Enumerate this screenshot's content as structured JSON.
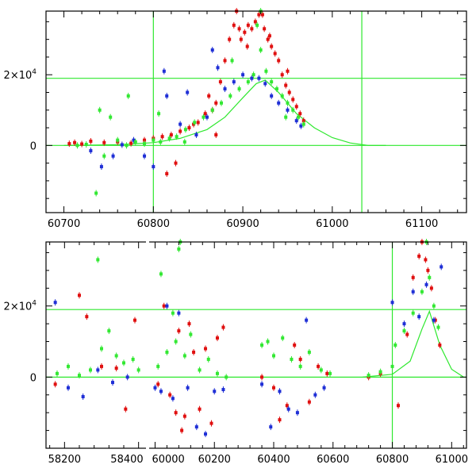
{
  "colors": {
    "red": "#e01010",
    "blue": "#1f2fd6",
    "green": "#33e833",
    "guide": "#2ee82e",
    "axis": "#000000"
  },
  "chart_data": [
    {
      "type": "scatter",
      "title": "",
      "xlabel": "",
      "ylabel": "",
      "xlim": [
        60680,
        61150
      ],
      "ylim": [
        -19000,
        38000
      ],
      "x_ticks": [
        60700,
        60800,
        60900,
        61000,
        61100
      ],
      "x_tick_labels": [
        "60700",
        "60800",
        "60900",
        "61000",
        "61100"
      ],
      "y_ticks": [
        0,
        20000
      ],
      "y_tick_labels": [
        {
          "base": "0",
          "exp": ""
        },
        {
          "base": "2×10",
          "exp": "4"
        }
      ],
      "vlines": [
        60800,
        61033
      ],
      "hlines": [
        0,
        19000
      ],
      "model_curve": {
        "x": [
          60700,
          60760,
          60800,
          60830,
          60860,
          60880,
          60900,
          60915,
          60925,
          60940,
          60960,
          60980,
          61000,
          61020,
          61040,
          61060
        ],
        "y": [
          0,
          200,
          800,
          2000,
          4500,
          8000,
          13500,
          17500,
          18500,
          15000,
          9000,
          5000,
          2200,
          700,
          0,
          0
        ]
      },
      "series": [
        {
          "color": "red",
          "x": [
            60706,
            60712,
            60720,
            60730,
            60745,
            60760,
            60775,
            60790,
            60800,
            60810,
            60820,
            60830,
            60840,
            60850,
            60858,
            60862,
            60866,
            60870,
            60875,
            60880,
            60885,
            60890,
            60893,
            60896,
            60898,
            60902,
            60906,
            60910,
            60914,
            60918,
            60920,
            60922,
            60924,
            60928,
            60932,
            60936,
            60940,
            60944,
            60948,
            60952,
            60956,
            60960,
            60964,
            60968,
            60815,
            60825,
            60845,
            60870,
            60905,
            60930,
            60950
          ],
          "y": [
            500,
            800,
            400,
            1200,
            800,
            1000,
            600,
            1500,
            2000,
            2500,
            3000,
            4000,
            5000,
            6500,
            9000,
            14000,
            10000,
            12000,
            18000,
            24000,
            30000,
            34000,
            38000,
            33000,
            30000,
            32000,
            34000,
            33000,
            35000,
            37000,
            39000,
            37000,
            33000,
            30000,
            28000,
            26000,
            24000,
            20000,
            17000,
            15000,
            13000,
            11000,
            9000,
            7000,
            -8000,
            -5000,
            6000,
            3000,
            28000,
            31000,
            21000
          ]
        },
        {
          "color": "blue",
          "x": [
            60730,
            60742,
            60755,
            60765,
            60778,
            60790,
            60800,
            60812,
            60815,
            60830,
            60838,
            60848,
            60860,
            60866,
            60872,
            60880,
            60890,
            60900,
            60910,
            60918,
            60925,
            60932,
            60940,
            60950,
            60960,
            60965
          ],
          "y": [
            -1500,
            -6000,
            -3000,
            200,
            1500,
            -3000,
            -6000,
            21000,
            14000,
            6000,
            15000,
            3000,
            8000,
            27000,
            22000,
            16000,
            18000,
            20000,
            19000,
            19000,
            17500,
            14000,
            12000,
            10000,
            7000,
            5500
          ]
        },
        {
          "color": "green",
          "x": [
            60715,
            60725,
            60736,
            60745,
            60752,
            60760,
            60770,
            60780,
            60790,
            60800,
            60808,
            60818,
            60826,
            60836,
            60846,
            60856,
            60866,
            60876,
            60886,
            60896,
            60906,
            60912,
            60916,
            60920,
            60926,
            60932,
            60938,
            60944,
            60950,
            60956,
            60962,
            60968,
            60740,
            60772,
            60806,
            60835,
            60888,
            60920,
            60948
          ],
          "y": [
            0,
            300,
            -13500,
            -3000,
            8000,
            1500,
            0,
            1000,
            500,
            1500,
            1000,
            2000,
            2500,
            4500,
            6500,
            8000,
            10000,
            12000,
            14000,
            16000,
            18000,
            20000,
            34000,
            38000,
            21000,
            18000,
            16000,
            14000,
            12000,
            10000,
            8000,
            6000,
            10000,
            14000,
            9000,
            1000,
            24000,
            27000,
            8000
          ]
        }
      ]
    },
    {
      "type": "scatter",
      "title": "",
      "xlabel": "",
      "ylabel": "",
      "axis_break": {
        "segments": [
          {
            "xlim": [
              58150,
              58420
            ]
          },
          {
            "xlim": [
              59980,
              61050
            ]
          }
        ]
      },
      "ylim": [
        -20000,
        38000
      ],
      "x_ticks": [
        58200,
        58400,
        60000,
        60200,
        60400,
        60600,
        60800,
        61000
      ],
      "x_tick_labels": [
        "58200",
        "58400",
        "60000",
        "60200",
        "60400",
        "60600",
        "60800",
        "61000"
      ],
      "y_ticks": [
        0,
        20000
      ],
      "y_tick_labels": [
        {
          "base": "0",
          "exp": ""
        },
        {
          "base": "2×10",
          "exp": "4"
        }
      ],
      "vlines": [
        60800
      ],
      "hlines": [
        0,
        19000
      ],
      "model_curve": {
        "x": [
          60700,
          60800,
          60860,
          60900,
          60925,
          60960,
          61000,
          61040
        ],
        "y": [
          0,
          800,
          4500,
          13500,
          18500,
          9000,
          2200,
          0
        ]
      },
      "series": [
        {
          "color": "red",
          "x": [
            58175,
            58240,
            58260,
            58300,
            58340,
            58365,
            58390,
            60010,
            60030,
            60050,
            60070,
            60080,
            60090,
            60100,
            60115,
            60130,
            60150,
            60170,
            60190,
            60210,
            60230,
            60360,
            60400,
            60420,
            60445,
            60470,
            60490,
            60520,
            60550,
            60580,
            60720,
            60760,
            60820,
            60850,
            60870,
            60890,
            60900,
            60912,
            60920,
            60932,
            60945,
            60960
          ],
          "y": [
            -2000,
            23000,
            17000,
            3000,
            2500,
            -9000,
            16000,
            -2000,
            20000,
            -5000,
            -10000,
            13000,
            -15000,
            -11000,
            15000,
            7000,
            -9000,
            8000,
            -13000,
            11000,
            14000,
            0,
            -3000,
            -12000,
            -8000,
            9000,
            5000,
            -7000,
            3000,
            1000,
            0,
            1000,
            -8000,
            12000,
            28000,
            34000,
            38000,
            33000,
            30000,
            25000,
            16000,
            9000
          ]
        },
        {
          "color": "blue",
          "x": [
            58175,
            58210,
            58250,
            58290,
            58330,
            58370,
            60000,
            60020,
            60040,
            60060,
            60080,
            60110,
            60140,
            60170,
            60200,
            60230,
            60360,
            60390,
            60420,
            60450,
            60480,
            60510,
            60540,
            60570,
            60800,
            60840,
            60870,
            60890,
            60915,
            60940,
            60965
          ],
          "y": [
            21000,
            -3000,
            -5500,
            2000,
            -1500,
            0,
            -3000,
            -4000,
            20000,
            -6000,
            18000,
            -3000,
            -14000,
            -16000,
            -4000,
            -3500,
            -2000,
            -14000,
            -4000,
            -9000,
            -10000,
            16000,
            -5000,
            -3000,
            21000,
            15000,
            24000,
            17000,
            26000,
            16000,
            31000
          ]
        },
        {
          "color": "green",
          "x": [
            58180,
            58210,
            58240,
            58270,
            58290,
            58300,
            58320,
            58340,
            58360,
            58385,
            58400,
            60010,
            60020,
            60040,
            60060,
            60070,
            60080,
            60085,
            60100,
            60120,
            60150,
            60180,
            60210,
            60240,
            60360,
            60380,
            60400,
            60430,
            60460,
            60490,
            60520,
            60560,
            60590,
            60720,
            60760,
            60800,
            60810,
            60840,
            60870,
            60900,
            60915,
            60925,
            60940,
            60955
          ],
          "y": [
            1000,
            3000,
            500,
            2000,
            33000,
            8000,
            13000,
            6000,
            4000,
            5000,
            2000,
            3000,
            29000,
            7000,
            18000,
            10000,
            36000,
            38000,
            6000,
            12000,
            2000,
            5000,
            1000,
            0,
            9000,
            10000,
            6000,
            11000,
            5000,
            3000,
            7000,
            2000,
            1000,
            500,
            1500,
            3000,
            9000,
            13000,
            18000,
            24000,
            38000,
            28000,
            20000,
            14000
          ]
        }
      ]
    }
  ]
}
